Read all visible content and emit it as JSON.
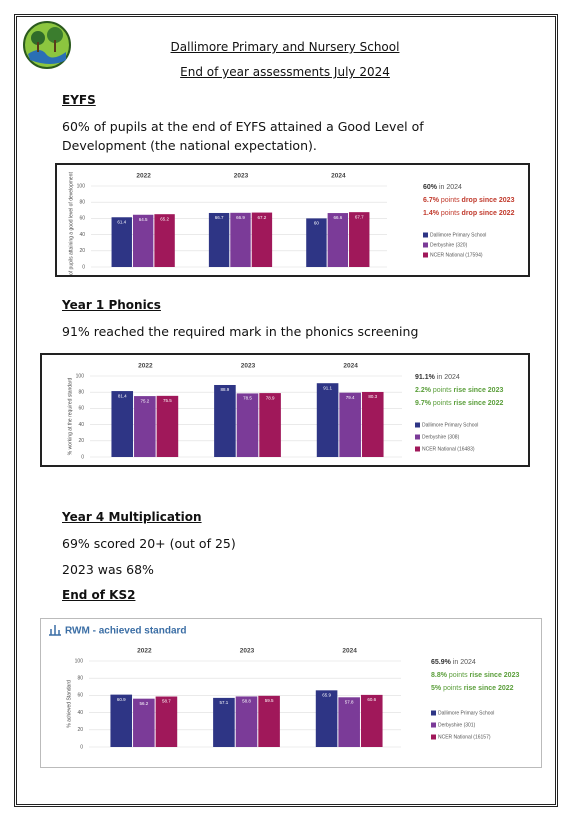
{
  "header": {
    "title": "Dallimore Primary and Nursery School",
    "subtitle": "End of year assessments July 2024"
  },
  "sections": [
    {
      "heading": "EYFS",
      "paragraphs": [
        "60% of pupils at the end of EYFS attained a Good Level of Development (the national expectation)."
      ],
      "chart": {
        "type": "bar",
        "y_label": "% of pupils attaining a good level of development",
        "categories": [
          "2022",
          "2023",
          "2024"
        ],
        "ylim": [
          0,
          100
        ],
        "yticks": [
          0,
          20,
          40,
          60,
          80,
          100
        ],
        "grid": true,
        "series": [
          {
            "name": "Dallimore Primary School",
            "color": "#2e3585",
            "values": [
              61.4,
              66.7,
              60
            ]
          },
          {
            "name": "Derbyshire (320)",
            "color": "#7b3b98",
            "values": [
              64.5,
              66.9,
              66.6
            ]
          },
          {
            "name": "NCER National (17594)",
            "color": "#a0185a",
            "values": [
              65.2,
              67.2,
              67.7
            ]
          }
        ],
        "summary": [
          [
            {
              "text": "60%",
              "bold": true,
              "color": "#333333"
            },
            {
              "text": " in 2024",
              "color": "#555555"
            }
          ],
          [
            {
              "text": "6.7%",
              "bold": true,
              "color": "#c0392b"
            },
            {
              "text": " points ",
              "color": "#c0392b"
            },
            {
              "text": "drop since 2023",
              "bold": true,
              "color": "#c0392b"
            }
          ],
          [
            {
              "text": "1.4%",
              "bold": true,
              "color": "#c0392b"
            },
            {
              "text": " points ",
              "color": "#c0392b"
            },
            {
              "text": "drop since 2022",
              "bold": true,
              "color": "#c0392b"
            }
          ]
        ]
      }
    },
    {
      "heading": "Year 1 Phonics",
      "paragraphs": [
        "91% reached the required mark in the phonics screening"
      ],
      "chart": {
        "type": "bar",
        "y_label": "% working at the required standard",
        "categories": [
          "2022",
          "2023",
          "2024"
        ],
        "ylim": [
          0,
          100
        ],
        "yticks": [
          0,
          20,
          40,
          60,
          80,
          100
        ],
        "grid": true,
        "series": [
          {
            "name": "Dallimore Primary School",
            "color": "#2e3585",
            "values": [
              81.4,
              88.9,
              91.1
            ]
          },
          {
            "name": "Derbyshire (308)",
            "color": "#7b3b98",
            "values": [
              75.2,
              78.5,
              79.4
            ]
          },
          {
            "name": "NCER National (16483)",
            "color": "#a0185a",
            "values": [
              75.5,
              78.9,
              80.3
            ]
          }
        ],
        "summary": [
          [
            {
              "text": "91.1%",
              "bold": true,
              "color": "#333333"
            },
            {
              "text": " in 2024",
              "color": "#555555"
            }
          ],
          [
            {
              "text": "2.2%",
              "bold": true,
              "color": "#5a9e3a"
            },
            {
              "text": " points ",
              "color": "#5a9e3a"
            },
            {
              "text": "rise since 2023",
              "bold": true,
              "color": "#5a9e3a"
            }
          ],
          [
            {
              "text": "9.7%",
              "bold": true,
              "color": "#5a9e3a"
            },
            {
              "text": " points ",
              "color": "#5a9e3a"
            },
            {
              "text": "rise since 2022",
              "bold": true,
              "color": "#5a9e3a"
            }
          ]
        ]
      }
    },
    {
      "heading": "Year 4 Multiplication",
      "paragraphs": [
        "69% scored 20+ (out of 25)",
        "2023 was 68%"
      ]
    },
    {
      "heading": "End of KS2",
      "chart": {
        "type": "bar",
        "title": "RWM - achieved standard",
        "y_label": "% achieved Standard",
        "categories": [
          "2022",
          "2023",
          "2024"
        ],
        "ylim": [
          0,
          100
        ],
        "yticks": [
          0,
          20,
          40,
          60,
          80,
          100
        ],
        "grid": true,
        "series": [
          {
            "name": "Dallimore Primary School",
            "color": "#2e3585",
            "values": [
              60.9,
              57.1,
              65.9
            ]
          },
          {
            "name": "Derbyshire (301)",
            "color": "#7b3b98",
            "values": [
              56.2,
              58.8,
              57.8
            ]
          },
          {
            "name": "NCER National (16157)",
            "color": "#a0185a",
            "values": [
              58.7,
              59.5,
              60.6
            ]
          }
        ],
        "summary": [
          [
            {
              "text": "65.9%",
              "bold": true,
              "color": "#333333"
            },
            {
              "text": " in 2024",
              "color": "#555555"
            }
          ],
          [
            {
              "text": "8.8%",
              "bold": true,
              "color": "#5a9e3a"
            },
            {
              "text": " points ",
              "color": "#5a9e3a"
            },
            {
              "text": "rise since 2023",
              "bold": true,
              "color": "#5a9e3a"
            }
          ],
          [
            {
              "text": "5%",
              "bold": true,
              "color": "#5a9e3a"
            },
            {
              "text": " points ",
              "color": "#5a9e3a"
            },
            {
              "text": "rise since 2022",
              "bold": true,
              "color": "#5a9e3a"
            }
          ]
        ]
      }
    }
  ]
}
